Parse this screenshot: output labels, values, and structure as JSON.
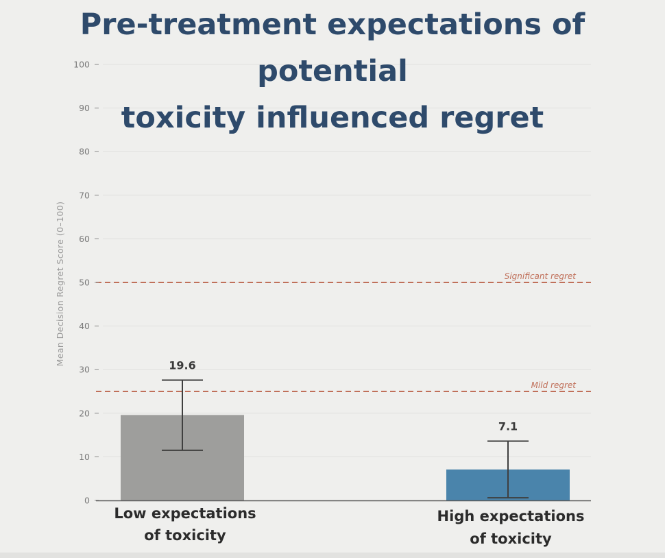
{
  "title": {
    "line1": "Pre-treatment expectations of potential",
    "line2": "toxicity influenced regret"
  },
  "chart_data": {
    "type": "bar",
    "ylabel": "Mean Decision Regret Score (0–100)",
    "ylim": [
      0,
      100
    ],
    "yticks": [
      0,
      10,
      20,
      30,
      40,
      50,
      60,
      70,
      80,
      90,
      100
    ],
    "grid": true,
    "categories": [
      {
        "line1": "Low expectations",
        "line2": "of toxicity"
      },
      {
        "line1": "High expectations",
        "line2": "of toxicity"
      }
    ],
    "values": [
      19.6,
      7.1
    ],
    "value_labels": [
      "19.6",
      "7.1"
    ],
    "error_bars": [
      {
        "lower": 11.5,
        "upper": 27.6
      },
      {
        "lower": 0.6,
        "upper": 13.6
      }
    ],
    "bar_colors": [
      "#9e9e9c",
      "#4a84ab"
    ],
    "reference_lines": [
      {
        "y": 50,
        "label": "Significant regret",
        "color": "#c0705a",
        "style": "dashed"
      },
      {
        "y": 25,
        "label": "Mild regret",
        "color": "#c0705a",
        "style": "dashed"
      }
    ]
  }
}
